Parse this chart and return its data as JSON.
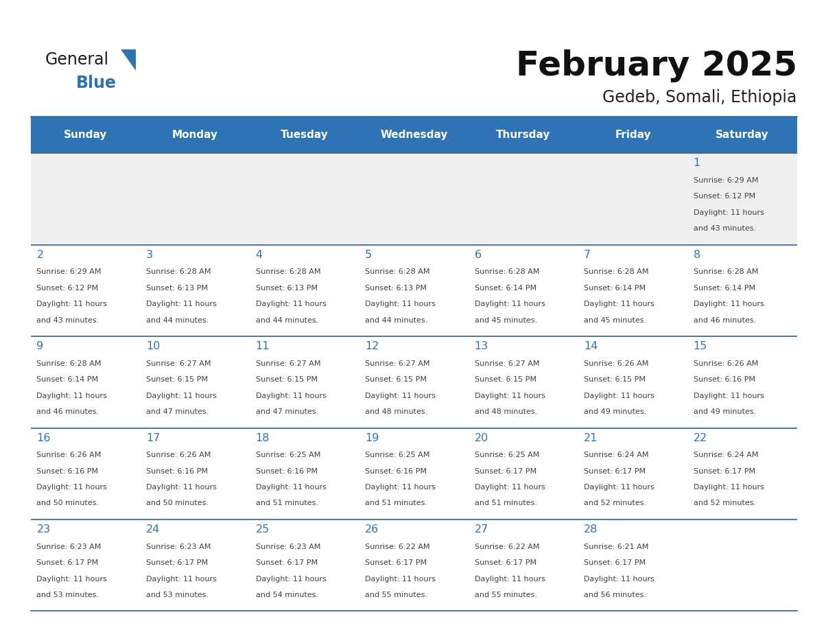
{
  "title": "February 2025",
  "subtitle": "Gedeb, Somali, Ethiopia",
  "days_of_week": [
    "Sunday",
    "Monday",
    "Tuesday",
    "Wednesday",
    "Thursday",
    "Friday",
    "Saturday"
  ],
  "header_bg": "#2E74B5",
  "header_text": "#FFFFFF",
  "cell_bg_row0": "#EFEFEF",
  "cell_bg_default": "#FFFFFF",
  "border_color": "#2E6096",
  "day_number_color": "#2E74B5",
  "text_color": "#404040",
  "title_color": "#111111",
  "subtitle_color": "#222222",
  "calendar_data": [
    [
      null,
      null,
      null,
      null,
      null,
      null,
      {
        "day": "1",
        "sunrise": "6:29 AM",
        "sunset": "6:12 PM",
        "daylight_h": "11 hours",
        "daylight_m": "43 minutes"
      }
    ],
    [
      {
        "day": "2",
        "sunrise": "6:29 AM",
        "sunset": "6:12 PM",
        "daylight_h": "11 hours",
        "daylight_m": "43 minutes"
      },
      {
        "day": "3",
        "sunrise": "6:28 AM",
        "sunset": "6:13 PM",
        "daylight_h": "11 hours",
        "daylight_m": "44 minutes"
      },
      {
        "day": "4",
        "sunrise": "6:28 AM",
        "sunset": "6:13 PM",
        "daylight_h": "11 hours",
        "daylight_m": "44 minutes"
      },
      {
        "day": "5",
        "sunrise": "6:28 AM",
        "sunset": "6:13 PM",
        "daylight_h": "11 hours",
        "daylight_m": "44 minutes"
      },
      {
        "day": "6",
        "sunrise": "6:28 AM",
        "sunset": "6:14 PM",
        "daylight_h": "11 hours",
        "daylight_m": "45 minutes"
      },
      {
        "day": "7",
        "sunrise": "6:28 AM",
        "sunset": "6:14 PM",
        "daylight_h": "11 hours",
        "daylight_m": "45 minutes"
      },
      {
        "day": "8",
        "sunrise": "6:28 AM",
        "sunset": "6:14 PM",
        "daylight_h": "11 hours",
        "daylight_m": "46 minutes"
      }
    ],
    [
      {
        "day": "9",
        "sunrise": "6:28 AM",
        "sunset": "6:14 PM",
        "daylight_h": "11 hours",
        "daylight_m": "46 minutes"
      },
      {
        "day": "10",
        "sunrise": "6:27 AM",
        "sunset": "6:15 PM",
        "daylight_h": "11 hours",
        "daylight_m": "47 minutes"
      },
      {
        "day": "11",
        "sunrise": "6:27 AM",
        "sunset": "6:15 PM",
        "daylight_h": "11 hours",
        "daylight_m": "47 minutes"
      },
      {
        "day": "12",
        "sunrise": "6:27 AM",
        "sunset": "6:15 PM",
        "daylight_h": "11 hours",
        "daylight_m": "48 minutes"
      },
      {
        "day": "13",
        "sunrise": "6:27 AM",
        "sunset": "6:15 PM",
        "daylight_h": "11 hours",
        "daylight_m": "48 minutes"
      },
      {
        "day": "14",
        "sunrise": "6:26 AM",
        "sunset": "6:15 PM",
        "daylight_h": "11 hours",
        "daylight_m": "49 minutes"
      },
      {
        "day": "15",
        "sunrise": "6:26 AM",
        "sunset": "6:16 PM",
        "daylight_h": "11 hours",
        "daylight_m": "49 minutes"
      }
    ],
    [
      {
        "day": "16",
        "sunrise": "6:26 AM",
        "sunset": "6:16 PM",
        "daylight_h": "11 hours",
        "daylight_m": "50 minutes"
      },
      {
        "day": "17",
        "sunrise": "6:26 AM",
        "sunset": "6:16 PM",
        "daylight_h": "11 hours",
        "daylight_m": "50 minutes"
      },
      {
        "day": "18",
        "sunrise": "6:25 AM",
        "sunset": "6:16 PM",
        "daylight_h": "11 hours",
        "daylight_m": "51 minutes"
      },
      {
        "day": "19",
        "sunrise": "6:25 AM",
        "sunset": "6:16 PM",
        "daylight_h": "11 hours",
        "daylight_m": "51 minutes"
      },
      {
        "day": "20",
        "sunrise": "6:25 AM",
        "sunset": "6:17 PM",
        "daylight_h": "11 hours",
        "daylight_m": "51 minutes"
      },
      {
        "day": "21",
        "sunrise": "6:24 AM",
        "sunset": "6:17 PM",
        "daylight_h": "11 hours",
        "daylight_m": "52 minutes"
      },
      {
        "day": "22",
        "sunrise": "6:24 AM",
        "sunset": "6:17 PM",
        "daylight_h": "11 hours",
        "daylight_m": "52 minutes"
      }
    ],
    [
      {
        "day": "23",
        "sunrise": "6:23 AM",
        "sunset": "6:17 PM",
        "daylight_h": "11 hours",
        "daylight_m": "53 minutes"
      },
      {
        "day": "24",
        "sunrise": "6:23 AM",
        "sunset": "6:17 PM",
        "daylight_h": "11 hours",
        "daylight_m": "53 minutes"
      },
      {
        "day": "25",
        "sunrise": "6:23 AM",
        "sunset": "6:17 PM",
        "daylight_h": "11 hours",
        "daylight_m": "54 minutes"
      },
      {
        "day": "26",
        "sunrise": "6:22 AM",
        "sunset": "6:17 PM",
        "daylight_h": "11 hours",
        "daylight_m": "55 minutes"
      },
      {
        "day": "27",
        "sunrise": "6:22 AM",
        "sunset": "6:17 PM",
        "daylight_h": "11 hours",
        "daylight_m": "55 minutes"
      },
      {
        "day": "28",
        "sunrise": "6:21 AM",
        "sunset": "6:17 PM",
        "daylight_h": "11 hours",
        "daylight_m": "56 minutes"
      },
      null
    ]
  ]
}
